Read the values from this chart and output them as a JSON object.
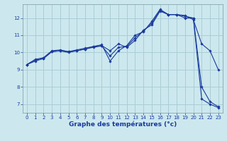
{
  "xlabel": "Graphe des températures (°c)",
  "bg_color": "#cce8ee",
  "grid_color": "#aacdd6",
  "line_color": "#1a3a9e",
  "xlim": [
    -0.5,
    23.5
  ],
  "ylim": [
    6.5,
    12.8
  ],
  "xticks": [
    0,
    1,
    2,
    3,
    4,
    5,
    6,
    7,
    8,
    9,
    10,
    11,
    12,
    13,
    14,
    15,
    16,
    17,
    18,
    19,
    20,
    21,
    22,
    23
  ],
  "yticks": [
    7,
    8,
    9,
    10,
    11,
    12
  ],
  "line1_x": [
    0,
    1,
    2,
    3,
    4,
    5,
    6,
    7,
    8,
    9,
    10,
    11,
    12,
    13,
    14,
    15,
    16,
    17,
    18,
    19,
    20,
    21,
    22,
    23
  ],
  "line1_y": [
    9.3,
    9.6,
    9.7,
    10.1,
    10.15,
    10.05,
    10.1,
    10.2,
    10.35,
    10.45,
    9.5,
    10.1,
    10.4,
    11.0,
    11.2,
    11.8,
    12.5,
    12.2,
    12.2,
    12.0,
    12.0,
    7.3,
    7.0,
    6.8
  ],
  "line2_x": [
    0,
    1,
    2,
    3,
    4,
    5,
    6,
    7,
    8,
    9,
    10,
    11,
    12,
    13,
    14,
    15,
    16,
    17,
    18,
    19,
    20,
    21,
    22,
    23
  ],
  "line2_y": [
    9.3,
    9.55,
    9.65,
    10.05,
    10.1,
    10.05,
    10.15,
    10.25,
    10.35,
    10.4,
    10.1,
    10.5,
    10.3,
    10.7,
    11.3,
    11.6,
    12.4,
    12.2,
    12.2,
    12.15,
    11.9,
    10.5,
    10.1,
    9.0
  ],
  "line3_x": [
    0,
    1,
    2,
    3,
    4,
    5,
    6,
    7,
    8,
    9,
    10,
    11,
    12,
    13,
    14,
    15,
    16,
    17,
    18,
    19,
    20,
    21,
    22,
    23
  ],
  "line3_y": [
    9.3,
    9.5,
    9.65,
    10.05,
    10.1,
    10.0,
    10.1,
    10.2,
    10.3,
    10.38,
    9.8,
    10.3,
    10.35,
    10.85,
    11.25,
    11.7,
    12.45,
    12.2,
    12.2,
    12.1,
    12.0,
    8.0,
    7.15,
    6.85
  ]
}
